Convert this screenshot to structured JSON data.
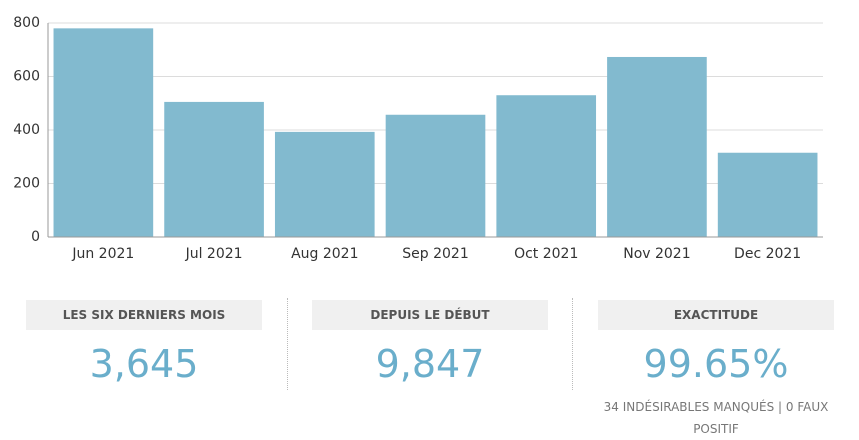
{
  "chart_data": {
    "type": "bar",
    "categories": [
      "Jun 2021",
      "Jul 2021",
      "Aug 2021",
      "Sep 2021",
      "Oct 2021",
      "Nov 2021",
      "Dec 2021"
    ],
    "values": [
      780,
      505,
      393,
      457,
      530,
      673,
      315
    ],
    "color": "#82bacf",
    "ylim": [
      0,
      800
    ],
    "yticks": [
      0,
      200,
      400,
      600,
      800
    ],
    "grid": true
  },
  "stats": [
    {
      "label": "LES SIX DERNIERS MOIS",
      "value": "3,645"
    },
    {
      "label": "DEPUIS LE DÉBUT",
      "value": "9,847"
    },
    {
      "label": "EXACTITUDE",
      "value": "99.65%",
      "note": "34 INDÉSIRABLES MANQUÉS | 0 FAUX POSITIF"
    }
  ]
}
